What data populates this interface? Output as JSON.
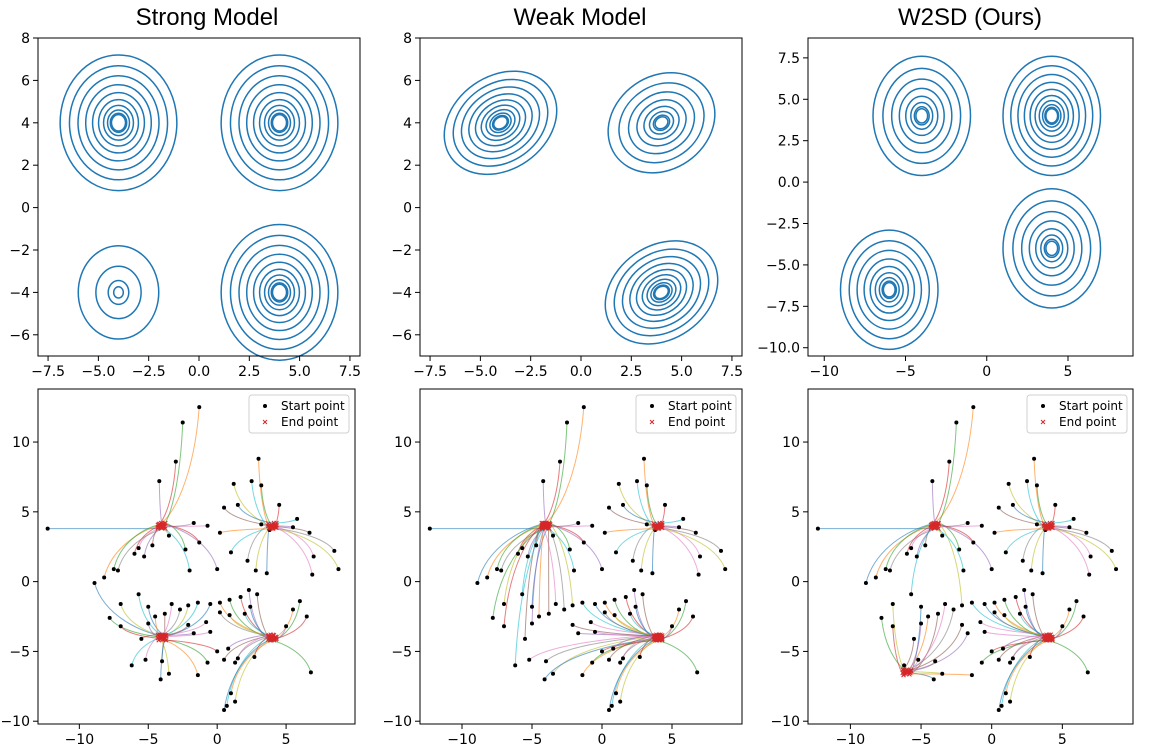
{
  "chart_data": [
    {
      "type": "contour",
      "title": "Strong Model",
      "xlim": [
        -8,
        8
      ],
      "ylim": [
        -7,
        8
      ],
      "xticks": [
        -7.5,
        -5.0,
        -2.5,
        0.0,
        2.5,
        5.0,
        7.5
      ],
      "xtick_labels": [
        "−7.5",
        "−5.0",
        "−2.5",
        "0.0",
        "2.5",
        "5.0",
        "7.5"
      ],
      "yticks": [
        -6,
        -4,
        -2,
        0,
        2,
        4,
        6,
        8
      ],
      "ytick_labels": [
        "−6",
        "−4",
        "−2",
        "0",
        "2",
        "4",
        "6",
        "8"
      ],
      "color": "#1f77b4",
      "modes": [
        {
          "center": [
            -4,
            4
          ],
          "spread": [
            2.9,
            3.2
          ],
          "rings": 10
        },
        {
          "center": [
            4,
            4
          ],
          "spread": [
            2.9,
            3.2
          ],
          "rings": 10
        },
        {
          "center": [
            -4,
            -4
          ],
          "spread": [
            2.0,
            2.2
          ],
          "rings": 4
        },
        {
          "center": [
            4,
            -4
          ],
          "spread": [
            2.9,
            3.2
          ],
          "rings": 10
        }
      ]
    },
    {
      "type": "contour",
      "title": "Weak Model",
      "xlim": [
        -8,
        8
      ],
      "ylim": [
        -7,
        8
      ],
      "xticks": [
        -7.5,
        -5.0,
        -2.5,
        0.0,
        2.5,
        5.0,
        7.5
      ],
      "xtick_labels": [
        "−7.5",
        "−5.0",
        "−2.5",
        "0.0",
        "2.5",
        "5.0",
        "7.5"
      ],
      "yticks": [
        -6,
        -4,
        -2,
        0,
        2,
        4,
        6,
        8
      ],
      "ytick_labels": [
        "−6",
        "−4",
        "−2",
        "0",
        "2",
        "4",
        "6",
        "8"
      ],
      "color": "#1f77b4",
      "modes": [
        {
          "center": [
            -4,
            4
          ],
          "spread": [
            3.0,
            2.2
          ],
          "tilt": -35,
          "rings": 10
        },
        {
          "center": [
            4,
            4
          ],
          "spread": [
            2.8,
            2.2
          ],
          "tilt": -35,
          "rings": 8
        },
        {
          "center": [
            4,
            -4
          ],
          "spread": [
            3.0,
            2.2
          ],
          "tilt": -35,
          "rings": 10
        }
      ]
    },
    {
      "type": "contour",
      "title": "W2SD (Ours)",
      "xlim": [
        -11,
        9
      ],
      "ylim": [
        -10.5,
        8.7
      ],
      "xticks": [
        -10,
        -5,
        0,
        5
      ],
      "xtick_labels": [
        "−10",
        "−5",
        "0",
        "5"
      ],
      "yticks": [
        -10.0,
        -7.5,
        -5.0,
        -2.5,
        0.0,
        2.5,
        5.0,
        7.5
      ],
      "ytick_labels": [
        "−10.0",
        "−7.5",
        "−5.0",
        "−2.5",
        "0.0",
        "2.5",
        "5.0",
        "7.5"
      ],
      "color": "#1f77b4",
      "modes": [
        {
          "center": [
            -4,
            4
          ],
          "spread": [
            3.0,
            3.6
          ],
          "rings": 8
        },
        {
          "center": [
            4,
            4
          ],
          "spread": [
            3.0,
            3.6
          ],
          "rings": 10
        },
        {
          "center": [
            -6,
            -6.5
          ],
          "spread": [
            3.0,
            3.6
          ],
          "rings": 9
        },
        {
          "center": [
            4,
            -4
          ],
          "spread": [
            3.0,
            3.6
          ],
          "rings": 8
        }
      ]
    },
    {
      "type": "scatter-trajectories",
      "xlim": [
        -13,
        10
      ],
      "ylim": [
        -10.2,
        13.8
      ],
      "xticks": [
        -10,
        -5,
        0,
        5
      ],
      "xtick_labels": [
        "−10",
        "−5",
        "0",
        "5"
      ],
      "yticks": [
        -10,
        -5,
        0,
        5,
        10
      ],
      "ytick_labels": [
        "−10",
        "−5",
        "0",
        "5",
        "10"
      ],
      "legend": {
        "location": "upper right",
        "start_label": "Start point",
        "end_label": "End point"
      },
      "targets": [
        [
          -4,
          4
        ],
        [
          4,
          4
        ],
        [
          -4,
          -4
        ],
        [
          4,
          -4
        ]
      ]
    },
    {
      "type": "scatter-trajectories",
      "xlim": [
        -13,
        10
      ],
      "ylim": [
        -10.2,
        13.8
      ],
      "xticks": [
        -10,
        -5,
        0,
        5
      ],
      "xtick_labels": [
        "−10",
        "−5",
        "0",
        "5"
      ],
      "yticks": [
        -10,
        -5,
        0,
        5,
        10
      ],
      "ytick_labels": [
        "−10",
        "−5",
        "0",
        "5",
        "10"
      ],
      "legend": {
        "location": "upper right",
        "start_label": "Start point",
        "end_label": "End point"
      },
      "targets": [
        [
          -4,
          4
        ],
        [
          4,
          4
        ],
        [
          4,
          -4
        ]
      ]
    },
    {
      "type": "scatter-trajectories",
      "xlim": [
        -13,
        10
      ],
      "ylim": [
        -10.2,
        13.8
      ],
      "xticks": [
        -10,
        -5,
        0,
        5
      ],
      "xtick_labels": [
        "−10",
        "−5",
        "0",
        "5"
      ],
      "yticks": [
        -10,
        -5,
        0,
        5,
        10
      ],
      "ytick_labels": [
        "−10",
        "−5",
        "0",
        "5",
        "10"
      ],
      "legend": {
        "location": "upper right",
        "start_label": "Start point",
        "end_label": "End point"
      },
      "targets": [
        [
          -4,
          4
        ],
        [
          4,
          4
        ],
        [
          -6,
          -6.5
        ],
        [
          4,
          -4
        ]
      ]
    }
  ],
  "trajectory_colors": [
    "#1f77b4",
    "#ff7f0e",
    "#2ca02c",
    "#d62728",
    "#9467bd",
    "#8c564b",
    "#e377c2",
    "#7f7f7f",
    "#bcbd22",
    "#17becf"
  ],
  "start_points": [
    [
      -12.3,
      3.8
    ],
    [
      -1.3,
      12.5
    ],
    [
      -2.5,
      11.4
    ],
    [
      -3.0,
      8.6
    ],
    [
      -4.2,
      7.2
    ],
    [
      0.5,
      5.3
    ],
    [
      -0.7,
      4.0
    ],
    [
      -1.7,
      4.2
    ],
    [
      1.2,
      7.0
    ],
    [
      2.5,
      7.2
    ],
    [
      1.5,
      5.5
    ],
    [
      3.0,
      8.8
    ],
    [
      3.2,
      6.9
    ],
    [
      4.5,
      5.5
    ],
    [
      5.5,
      3.9
    ],
    [
      6.7,
      3.5
    ],
    [
      7.0,
      1.8
    ],
    [
      8.5,
      2.2
    ],
    [
      8.8,
      0.9
    ],
    [
      5.8,
      4.5
    ],
    [
      -8.9,
      -0.1
    ],
    [
      -8.2,
      0.3
    ],
    [
      -7.5,
      0.9
    ],
    [
      -6.0,
      2.0
    ],
    [
      -5.3,
      1.8
    ],
    [
      -4.7,
      2.6
    ],
    [
      -5.7,
      2.4
    ],
    [
      -7.2,
      0.8
    ],
    [
      -7.0,
      -1.6
    ],
    [
      -5.7,
      -0.9
    ],
    [
      -5.0,
      -1.8
    ],
    [
      -4.5,
      -2.5
    ],
    [
      -7.8,
      -2.6
    ],
    [
      -7.0,
      -3.2
    ],
    [
      -5.0,
      -3.0
    ],
    [
      -3.8,
      -2.3
    ],
    [
      -3.3,
      -1.6
    ],
    [
      -2.7,
      -2.0
    ],
    [
      -2.1,
      -1.7
    ],
    [
      -1.4,
      -1.5
    ],
    [
      -0.5,
      -1.6
    ],
    [
      0.2,
      -1.5
    ],
    [
      0.9,
      -1.3
    ],
    [
      1.7,
      -1.1
    ],
    [
      2.3,
      -0.6
    ],
    [
      2.9,
      -0.9
    ],
    [
      -0.8,
      -2.9
    ],
    [
      0.2,
      -2.2
    ],
    [
      0.9,
      -2.4
    ],
    [
      2.0,
      -2.3
    ],
    [
      2.4,
      -1.8
    ],
    [
      5.5,
      -2.0
    ],
    [
      6.0,
      -1.4
    ],
    [
      6.5,
      -2.5
    ],
    [
      5.0,
      -3.2
    ],
    [
      -5.5,
      -4.1
    ],
    [
      -5.2,
      -5.6
    ],
    [
      -4.0,
      -5.7
    ],
    [
      -3.5,
      -6.6
    ],
    [
      -6.2,
      -6.0
    ],
    [
      -4.1,
      -7.0
    ],
    [
      -1.4,
      -6.7
    ],
    [
      -0.7,
      -5.8
    ],
    [
      0.0,
      -5.0
    ],
    [
      0.8,
      -4.8
    ],
    [
      0.5,
      -5.6
    ],
    [
      1.5,
      -5.5
    ],
    [
      1.3,
      -5.8
    ],
    [
      1.3,
      -8.6
    ],
    [
      0.7,
      -8.9
    ],
    [
      0.5,
      -9.2
    ],
    [
      1.0,
      -8.0
    ],
    [
      6.8,
      -6.5
    ],
    [
      2.7,
      -5.4
    ],
    [
      -1.7,
      -3.7
    ],
    [
      -2.1,
      -3.1
    ],
    [
      -0.5,
      -3.6
    ],
    [
      2.2,
      1.5
    ],
    [
      2.8,
      0.8
    ],
    [
      1.0,
      2.1
    ],
    [
      3.6,
      0.6
    ],
    [
      0.2,
      3.5
    ],
    [
      -2.3,
      2.3
    ],
    [
      -1.3,
      2.8
    ],
    [
      0.0,
      0.9
    ],
    [
      3.8,
      3.7
    ],
    [
      6.9,
      0.5
    ],
    [
      3.2,
      4.1
    ],
    [
      -3.5,
      3.3
    ],
    [
      -2.0,
      0.8
    ]
  ]
}
